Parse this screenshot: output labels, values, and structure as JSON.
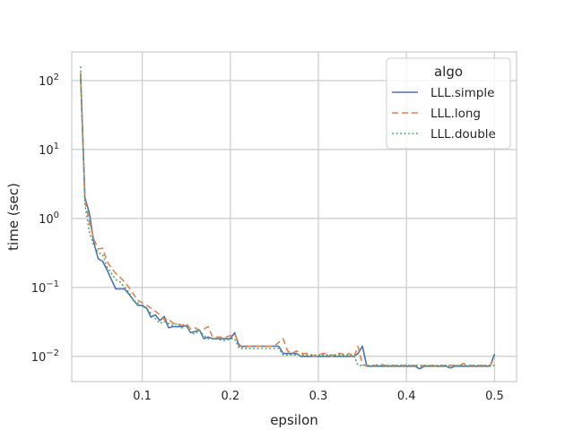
{
  "chart_data": {
    "type": "line",
    "xlabel": "epsilon",
    "ylabel": "time (sec)",
    "yscale": "log",
    "xlim": [
      0.02,
      0.525
    ],
    "ylim": [
      0.0043,
      260
    ],
    "grid": true,
    "x_ticks": [
      {
        "value": 0.1,
        "label": "0.1"
      },
      {
        "value": 0.2,
        "label": "0.2"
      },
      {
        "value": 0.3,
        "label": "0.3"
      },
      {
        "value": 0.4,
        "label": "0.4"
      },
      {
        "value": 0.5,
        "label": "0.5"
      }
    ],
    "y_ticks": [
      {
        "value": 0.01,
        "base": "10",
        "exp": "−2"
      },
      {
        "value": 0.1,
        "base": "10",
        "exp": "−1"
      },
      {
        "value": 1,
        "base": "10",
        "exp": "0"
      },
      {
        "value": 10,
        "base": "10",
        "exp": "1"
      },
      {
        "value": 100,
        "base": "10",
        "exp": "2"
      }
    ],
    "legend": {
      "title": "algo",
      "position": "top-right"
    },
    "series": [
      {
        "name": "LLL.simple",
        "color": "#4c72b0",
        "dash": "solid",
        "x": [
          0.03,
          0.035,
          0.04,
          0.045,
          0.05,
          0.055,
          0.06,
          0.065,
          0.07,
          0.075,
          0.08,
          0.085,
          0.09,
          0.095,
          0.1,
          0.105,
          0.11,
          0.115,
          0.12,
          0.125,
          0.13,
          0.135,
          0.14,
          0.145,
          0.15,
          0.155,
          0.16,
          0.165,
          0.17,
          0.175,
          0.18,
          0.185,
          0.19,
          0.195,
          0.2,
          0.205,
          0.21,
          0.215,
          0.22,
          0.225,
          0.23,
          0.235,
          0.24,
          0.245,
          0.25,
          0.255,
          0.26,
          0.265,
          0.27,
          0.275,
          0.28,
          0.285,
          0.29,
          0.295,
          0.3,
          0.305,
          0.31,
          0.315,
          0.32,
          0.325,
          0.33,
          0.335,
          0.34,
          0.345,
          0.35,
          0.355,
          0.36,
          0.365,
          0.37,
          0.375,
          0.38,
          0.385,
          0.39,
          0.395,
          0.4,
          0.405,
          0.41,
          0.415,
          0.42,
          0.425,
          0.43,
          0.435,
          0.44,
          0.445,
          0.45,
          0.455,
          0.46,
          0.465,
          0.47,
          0.475,
          0.48,
          0.485,
          0.49,
          0.495,
          0.5
        ],
        "values": [
          120,
          2.0,
          1.2,
          0.45,
          0.26,
          0.24,
          0.18,
          0.13,
          0.095,
          0.095,
          0.095,
          0.08,
          0.065,
          0.055,
          0.055,
          0.05,
          0.037,
          0.04,
          0.033,
          0.038,
          0.026,
          0.027,
          0.027,
          0.027,
          0.028,
          0.022,
          0.023,
          0.024,
          0.018,
          0.019,
          0.018,
          0.018,
          0.018,
          0.018,
          0.018,
          0.022,
          0.014,
          0.014,
          0.014,
          0.014,
          0.014,
          0.014,
          0.014,
          0.014,
          0.014,
          0.014,
          0.011,
          0.011,
          0.011,
          0.011,
          0.01,
          0.01,
          0.01,
          0.01,
          0.01,
          0.01,
          0.01,
          0.01,
          0.01,
          0.01,
          0.01,
          0.01,
          0.01,
          0.011,
          0.014,
          0.0072,
          0.0072,
          0.0072,
          0.0072,
          0.0072,
          0.0072,
          0.0072,
          0.0072,
          0.0072,
          0.0072,
          0.0072,
          0.0072,
          0.0066,
          0.0072,
          0.0072,
          0.0072,
          0.0072,
          0.0072,
          0.0072,
          0.0068,
          0.0072,
          0.0072,
          0.0072,
          0.0072,
          0.0072,
          0.0072,
          0.0072,
          0.0072,
          0.0072,
          0.0108
        ]
      },
      {
        "name": "LLL.long",
        "color": "#dd8452",
        "dash": "7 4",
        "x": [
          0.03,
          0.035,
          0.04,
          0.045,
          0.05,
          0.055,
          0.06,
          0.065,
          0.07,
          0.075,
          0.08,
          0.085,
          0.09,
          0.095,
          0.1,
          0.105,
          0.11,
          0.115,
          0.12,
          0.125,
          0.13,
          0.135,
          0.14,
          0.145,
          0.15,
          0.155,
          0.16,
          0.165,
          0.17,
          0.175,
          0.18,
          0.185,
          0.19,
          0.195,
          0.2,
          0.205,
          0.21,
          0.215,
          0.22,
          0.225,
          0.23,
          0.235,
          0.24,
          0.245,
          0.25,
          0.255,
          0.26,
          0.265,
          0.27,
          0.275,
          0.28,
          0.285,
          0.29,
          0.295,
          0.3,
          0.305,
          0.31,
          0.315,
          0.32,
          0.325,
          0.33,
          0.335,
          0.34,
          0.345,
          0.35,
          0.355,
          0.36,
          0.365,
          0.37,
          0.375,
          0.38,
          0.385,
          0.39,
          0.395,
          0.4,
          0.405,
          0.41,
          0.415,
          0.42,
          0.425,
          0.43,
          0.435,
          0.44,
          0.445,
          0.45,
          0.455,
          0.46,
          0.465,
          0.47,
          0.475,
          0.48,
          0.485,
          0.49,
          0.495,
          0.5
        ],
        "values": [
          130,
          1.9,
          0.9,
          0.5,
          0.36,
          0.37,
          0.24,
          0.19,
          0.16,
          0.14,
          0.12,
          0.1,
          0.08,
          0.065,
          0.06,
          0.055,
          0.05,
          0.045,
          0.04,
          0.034,
          0.035,
          0.03,
          0.03,
          0.028,
          0.03,
          0.025,
          0.026,
          0.024,
          0.025,
          0.027,
          0.019,
          0.019,
          0.019,
          0.019,
          0.02,
          0.021,
          0.015,
          0.013,
          0.014,
          0.014,
          0.014,
          0.014,
          0.014,
          0.014,
          0.014,
          0.016,
          0.018,
          0.012,
          0.011,
          0.012,
          0.011,
          0.011,
          0.011,
          0.01,
          0.0105,
          0.011,
          0.011,
          0.01,
          0.011,
          0.011,
          0.0105,
          0.011,
          0.0095,
          0.014,
          0.0075,
          0.0074,
          0.0074,
          0.0074,
          0.0078,
          0.0074,
          0.0074,
          0.0074,
          0.0074,
          0.0074,
          0.0074,
          0.0074,
          0.0074,
          0.0071,
          0.0074,
          0.0074,
          0.0074,
          0.0072,
          0.0074,
          0.0074,
          0.0074,
          0.0074,
          0.0074,
          0.0079,
          0.0074,
          0.0074,
          0.0074,
          0.0074,
          0.0074,
          0.0074,
          0.0094
        ]
      },
      {
        "name": "LLL.double",
        "color": "#55a868",
        "dash": "2 2.5",
        "x": [
          0.03,
          0.035,
          0.04,
          0.045,
          0.05,
          0.055,
          0.06,
          0.065,
          0.07,
          0.075,
          0.08,
          0.085,
          0.09,
          0.095,
          0.1,
          0.105,
          0.11,
          0.115,
          0.12,
          0.125,
          0.13,
          0.135,
          0.14,
          0.145,
          0.15,
          0.155,
          0.16,
          0.165,
          0.17,
          0.175,
          0.18,
          0.185,
          0.19,
          0.195,
          0.2,
          0.205,
          0.21,
          0.215,
          0.22,
          0.225,
          0.23,
          0.235,
          0.24,
          0.245,
          0.25,
          0.255,
          0.26,
          0.265,
          0.27,
          0.275,
          0.28,
          0.285,
          0.29,
          0.295,
          0.3,
          0.305,
          0.31,
          0.315,
          0.32,
          0.325,
          0.33,
          0.335,
          0.34,
          0.345,
          0.35,
          0.355,
          0.36,
          0.365,
          0.37,
          0.375,
          0.38,
          0.385,
          0.39,
          0.395,
          0.4,
          0.405,
          0.41,
          0.415,
          0.42,
          0.425,
          0.43,
          0.435,
          0.44,
          0.445,
          0.45,
          0.455,
          0.46,
          0.465,
          0.47,
          0.475,
          0.48,
          0.485,
          0.49,
          0.495,
          0.5
        ],
        "values": [
          160,
          1.6,
          0.65,
          0.4,
          0.32,
          0.3,
          0.2,
          0.16,
          0.13,
          0.12,
          0.1,
          0.085,
          0.065,
          0.06,
          0.052,
          0.05,
          0.042,
          0.035,
          0.03,
          0.032,
          0.03,
          0.028,
          0.03,
          0.026,
          0.028,
          0.022,
          0.021,
          0.024,
          0.02,
          0.018,
          0.018,
          0.018,
          0.017,
          0.017,
          0.018,
          0.018,
          0.013,
          0.013,
          0.013,
          0.013,
          0.013,
          0.013,
          0.013,
          0.013,
          0.013,
          0.013,
          0.0105,
          0.0105,
          0.0105,
          0.0105,
          0.0105,
          0.0105,
          0.0105,
          0.0105,
          0.0105,
          0.0105,
          0.0105,
          0.0105,
          0.0105,
          0.0105,
          0.0105,
          0.0105,
          0.0105,
          0.0074,
          0.0074,
          0.0074,
          0.0074,
          0.0074,
          0.0074,
          0.0074,
          0.0074,
          0.0074,
          0.0074,
          0.0074,
          0.0074,
          0.0074,
          0.0074,
          0.0074,
          0.0074,
          0.0074,
          0.0074,
          0.0074,
          0.0074,
          0.0074,
          0.0074,
          0.0074,
          0.0074,
          0.0074,
          0.0074,
          0.0074,
          0.0074,
          0.0074,
          0.0074,
          0.0074,
          0.0074
        ]
      }
    ]
  }
}
